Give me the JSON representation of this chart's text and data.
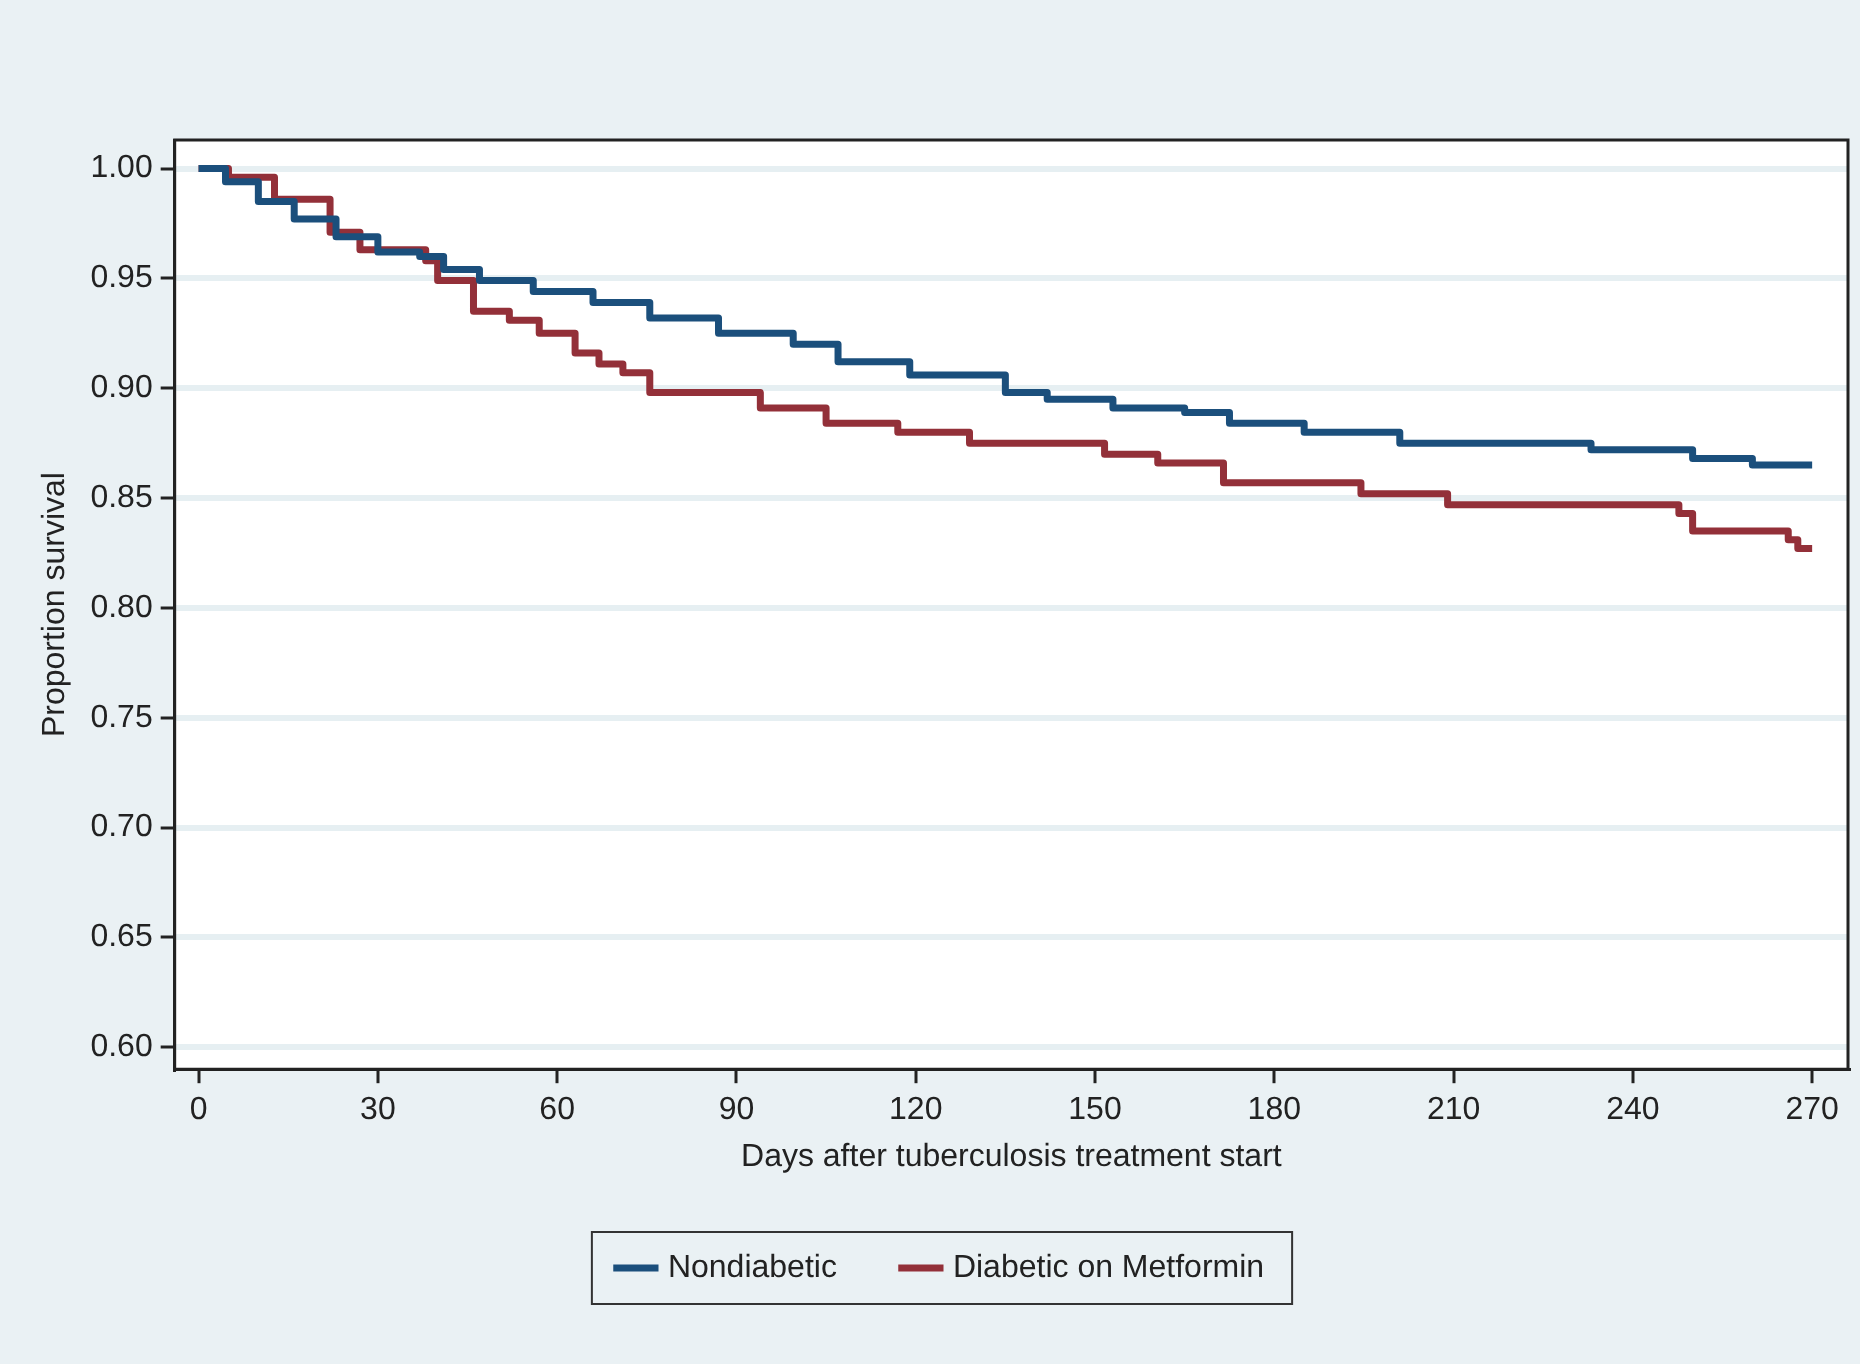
{
  "chart_data": {
    "type": "step",
    "xlabel": "Days after tuberculosis treatment start",
    "ylabel": "Proportion survival",
    "xlim": [
      -4,
      276
    ],
    "xticks": [
      0,
      30,
      60,
      90,
      120,
      150,
      180,
      210,
      240,
      270
    ],
    "ylim": [
      0.59,
      1.013
    ],
    "yticks": [
      {
        "value": 0.6,
        "label": "0.60"
      },
      {
        "value": 0.65,
        "label": "0.65"
      },
      {
        "value": 0.7,
        "label": "0.70"
      },
      {
        "value": 0.75,
        "label": "0.75"
      },
      {
        "value": 0.8,
        "label": "0.80"
      },
      {
        "value": 0.85,
        "label": "0.85"
      },
      {
        "value": 0.9,
        "label": "0.90"
      },
      {
        "value": 0.95,
        "label": "0.95"
      },
      {
        "value": 1,
        "label": "1.00"
      }
    ],
    "grid": "y",
    "legend": "bottom",
    "marker": "none",
    "series": [
      {
        "name": "Nondiabetic",
        "color": "#1b4f7c",
        "x": [
          0,
          4.5,
          10,
          16,
          23,
          30,
          37,
          41,
          47,
          56,
          66,
          75.5,
          87,
          99.5,
          107,
          119,
          135,
          142,
          153,
          165,
          172.5,
          185,
          201,
          233,
          250,
          260,
          270
        ],
        "values": [
          1,
          0.994,
          0.985,
          0.977,
          0.969,
          0.962,
          0.96,
          0.954,
          0.949,
          0.944,
          0.939,
          0.932,
          0.925,
          0.92,
          0.912,
          0.906,
          0.898,
          0.895,
          0.891,
          0.889,
          0.884,
          0.88,
          0.875,
          0.872,
          0.868,
          0.865,
          0.865
        ]
      },
      {
        "name": "Diabetic on Metformin",
        "color": "#933039",
        "x": [
          0,
          5,
          12.7,
          22,
          27,
          38,
          40,
          46,
          52,
          57,
          63,
          67,
          71,
          75.5,
          94,
          105,
          117,
          129,
          151.6,
          160.5,
          171.5,
          194.5,
          209,
          247.7,
          250,
          266,
          267.6,
          270
        ],
        "values": [
          1,
          0.996,
          0.986,
          0.971,
          0.963,
          0.958,
          0.949,
          0.935,
          0.931,
          0.925,
          0.916,
          0.911,
          0.907,
          0.898,
          0.891,
          0.884,
          0.88,
          0.875,
          0.87,
          0.866,
          0.857,
          0.852,
          0.847,
          0.843,
          0.835,
          0.831,
          0.827,
          0.827
        ]
      }
    ]
  }
}
